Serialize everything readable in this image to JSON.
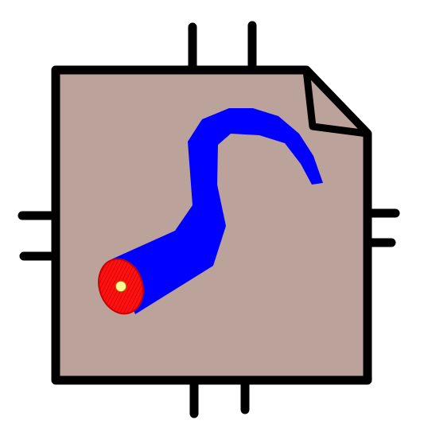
{
  "icon": {
    "name": "file-with-cable-icon",
    "colors": {
      "background": "#ffffff",
      "page": "#bba39b",
      "outline": "#000000",
      "cable": "#0000ff",
      "cable_end": "#ff0000",
      "cable_core": "#ffff99"
    }
  }
}
